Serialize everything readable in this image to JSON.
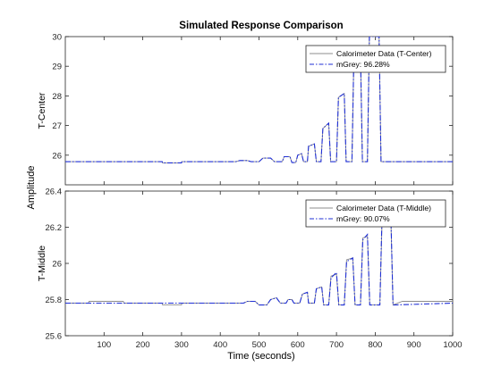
{
  "figure": {
    "title": "Simulated Response Comparison",
    "xlabel": "Time (seconds)",
    "ylabel": "Amplitude"
  },
  "colors": {
    "measured": "#8c8c8c",
    "model": "#1f2fd6",
    "axis": "#262626",
    "legend_border": "#262626"
  },
  "chart_data": [
    {
      "type": "line",
      "ylabel": "T-Center",
      "xlim": [
        0,
        1000
      ],
      "ylim": [
        25,
        30
      ],
      "xticks": [
        100,
        200,
        300,
        400,
        500,
        600,
        700,
        800,
        900,
        1000
      ],
      "xtick_labels_shown": false,
      "yticks": [
        26,
        27,
        28,
        29,
        30
      ],
      "grid": false,
      "legend": {
        "placement": "top-right",
        "entries": [
          "Calorimeter Data (T-Center)",
          "mGrey: 96.28%"
        ]
      },
      "series": [
        {
          "name": "Calorimeter Data (T-Center)",
          "style": "solid",
          "x": [
            0,
            250,
            251,
            300,
            301,
            440,
            450,
            470,
            480,
            500,
            510,
            530,
            540,
            560,
            565,
            580,
            585,
            595,
            600,
            610,
            615,
            625,
            628,
            643,
            648,
            660,
            665,
            680,
            685,
            700,
            705,
            720,
            725,
            740,
            745,
            762,
            767,
            780,
            785,
            810,
            815,
            840,
            845,
            1000
          ],
          "y": [
            25.78,
            25.78,
            25.74,
            25.74,
            25.78,
            25.78,
            25.82,
            25.82,
            25.78,
            25.78,
            25.9,
            25.9,
            25.78,
            25.78,
            25.95,
            25.95,
            25.75,
            25.75,
            26.0,
            26.05,
            25.78,
            25.78,
            26.3,
            26.38,
            25.78,
            25.78,
            26.9,
            27.08,
            25.78,
            25.78,
            27.95,
            28.08,
            25.78,
            25.78,
            29.45,
            29.5,
            25.78,
            25.78,
            30.0,
            30.0,
            25.78,
            25.78,
            25.78,
            25.78
          ]
        },
        {
          "name": "mGrey: 96.28%",
          "style": "dashdot",
          "x": [
            0,
            250,
            251,
            300,
            301,
            440,
            450,
            470,
            480,
            500,
            510,
            530,
            540,
            560,
            565,
            580,
            585,
            595,
            600,
            610,
            615,
            625,
            628,
            643,
            648,
            660,
            665,
            680,
            685,
            700,
            705,
            720,
            725,
            740,
            745,
            762,
            767,
            780,
            785,
            810,
            815,
            840,
            845,
            1000
          ],
          "y": [
            25.78,
            25.78,
            25.74,
            25.74,
            25.78,
            25.78,
            25.82,
            25.82,
            25.78,
            25.78,
            25.9,
            25.9,
            25.78,
            25.78,
            25.95,
            25.95,
            25.75,
            25.75,
            26.0,
            26.05,
            25.78,
            25.78,
            26.3,
            26.38,
            25.78,
            25.78,
            26.9,
            27.08,
            25.78,
            25.78,
            27.95,
            28.08,
            25.78,
            25.78,
            29.45,
            29.5,
            25.78,
            25.78,
            30.0,
            30.0,
            25.78,
            25.78,
            25.78,
            25.78
          ]
        }
      ]
    },
    {
      "type": "line",
      "ylabel": "T-Middle",
      "xlim": [
        0,
        1000
      ],
      "ylim": [
        25.6,
        26.4
      ],
      "xticks": [
        100,
        200,
        300,
        400,
        500,
        600,
        700,
        800,
        900,
        1000
      ],
      "xtick_labels_shown": true,
      "yticks": [
        25.6,
        25.8,
        26,
        26.2,
        26.4
      ],
      "grid": false,
      "legend": {
        "placement": "top-right",
        "entries": [
          "Calorimeter Data (T-Middle)",
          "mGrey: 90.07%"
        ]
      },
      "series": [
        {
          "name": "Calorimeter Data (T-Middle)",
          "style": "solid",
          "x": [
            0,
            60,
            61,
            150,
            151,
            250,
            251,
            300,
            301,
            460,
            470,
            490,
            500,
            520,
            530,
            545,
            555,
            570,
            575,
            585,
            590,
            605,
            612,
            625,
            628,
            643,
            648,
            662,
            667,
            680,
            686,
            700,
            706,
            720,
            726,
            742,
            748,
            762,
            768,
            780,
            786,
            812,
            818,
            840,
            846,
            870,
            1000
          ],
          "y": [
            25.78,
            25.78,
            25.79,
            25.79,
            25.78,
            25.78,
            25.77,
            25.77,
            25.78,
            25.78,
            25.79,
            25.79,
            25.77,
            25.77,
            25.8,
            25.81,
            25.78,
            25.78,
            25.8,
            25.8,
            25.78,
            25.78,
            25.83,
            25.84,
            25.78,
            25.78,
            25.86,
            25.87,
            25.77,
            25.77,
            25.93,
            25.94,
            25.77,
            25.77,
            26.02,
            26.03,
            25.77,
            25.77,
            26.14,
            26.15,
            25.77,
            25.77,
            26.26,
            26.28,
            25.77,
            25.79,
            25.79
          ]
        },
        {
          "name": "mGrey: 90.07%",
          "style": "dashdot",
          "x": [
            0,
            460,
            470,
            490,
            500,
            520,
            530,
            545,
            555,
            570,
            575,
            585,
            590,
            605,
            612,
            625,
            628,
            643,
            648,
            662,
            667,
            680,
            686,
            700,
            706,
            720,
            726,
            742,
            748,
            762,
            768,
            780,
            786,
            812,
            818,
            840,
            846,
            1000
          ],
          "y": [
            25.78,
            25.78,
            25.79,
            25.79,
            25.77,
            25.77,
            25.8,
            25.81,
            25.78,
            25.78,
            25.8,
            25.8,
            25.78,
            25.78,
            25.83,
            25.84,
            25.78,
            25.78,
            25.86,
            25.87,
            25.77,
            25.77,
            25.92,
            25.95,
            25.77,
            25.77,
            26.01,
            26.03,
            25.77,
            25.77,
            26.13,
            26.16,
            25.77,
            25.77,
            26.3,
            26.31,
            25.77,
            25.78
          ]
        }
      ]
    }
  ]
}
